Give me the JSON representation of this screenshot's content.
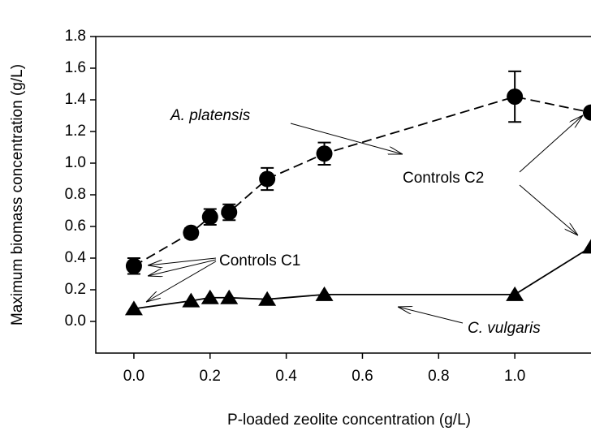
{
  "chart_data": {
    "type": "scatter",
    "x_label": "P-loaded zeolite concentration (g/L)",
    "y_label": "Maximum biomass concentration (g/L)",
    "x": [
      0,
      0.15,
      0.2,
      0.25,
      0.35,
      0.5,
      1.0,
      1.2
    ],
    "series": [
      {
        "name": "A. platensis",
        "color": "#000000",
        "marker": "circle",
        "line": "dashed",
        "values": [
          0.35,
          0.56,
          0.66,
          0.69,
          0.9,
          1.06,
          1.42,
          1.32
        ],
        "errors": [
          0.05,
          0.03,
          0.05,
          0.05,
          0.07,
          0.07,
          0.16,
          null
        ]
      },
      {
        "name": "C. vulgaris",
        "color": "#000000",
        "marker": "triangle",
        "line": "solid",
        "values": [
          0.08,
          0.13,
          0.15,
          0.15,
          0.14,
          0.17,
          0.17,
          0.47
        ]
      }
    ],
    "annotations": [
      "A. platensis",
      "Controls C1",
      "Controls C2",
      "C. vulgaris"
    ],
    "xlim": [
      -0.1,
      1.2
    ],
    "ylim": [
      -0.2,
      1.8
    ],
    "xticks": [
      {
        "value": 0,
        "label": "0.0"
      },
      {
        "value": 0.2,
        "label": "0.2"
      },
      {
        "value": 0.4,
        "label": "0.4"
      },
      {
        "value": 0.6,
        "label": "0.6"
      },
      {
        "value": 0.8,
        "label": "0.8"
      },
      {
        "value": 1.0,
        "label": "1.0"
      }
    ],
    "yticks": [
      {
        "value": 0,
        "label": "0.0"
      },
      {
        "value": 0.2,
        "label": "0.2"
      },
      {
        "value": 0.4,
        "label": "0.4"
      },
      {
        "value": 0.6,
        "label": "0.6"
      },
      {
        "value": 0.8,
        "label": "0.8"
      },
      {
        "value": 1.0,
        "label": "1.0"
      },
      {
        "value": 1.2,
        "label": "1.2"
      },
      {
        "value": 1.4,
        "label": "1.4"
      },
      {
        "value": 1.6,
        "label": "1.6"
      },
      {
        "value": 1.8,
        "label": "1.8"
      }
    ]
  }
}
